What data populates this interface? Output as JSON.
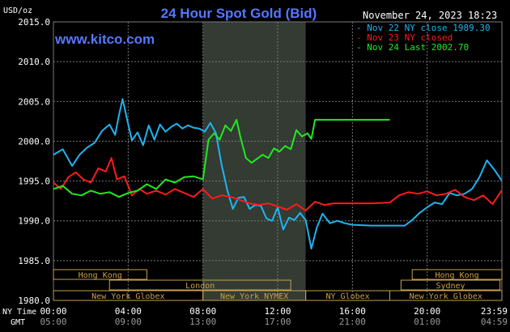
{
  "header": {
    "title": "24 Hour Spot Gold (Bid)",
    "unit": "USD/oz",
    "date": "November 24, 2023 18:23",
    "watermark": "www.kitco.com"
  },
  "legend": [
    {
      "label": "Nov 22 NY close 1989.30",
      "color": "#1eb4f0"
    },
    {
      "label": "Nov 23 NY closed",
      "color": "#ff1a1a"
    },
    {
      "label": "Nov 24 Last 2002.70",
      "color": "#22e822"
    }
  ],
  "footer": {
    "ny_time_label": "NY Time",
    "gmt_label": "GMT"
  },
  "markets": {
    "row1": [
      "Hong Kong",
      "Hong Kong"
    ],
    "row2": [
      "London",
      "Sydney"
    ],
    "row3": [
      "New York Globex",
      "New York NYMEX",
      "NY Globex",
      "New York Globex"
    ]
  },
  "colors": {
    "background": "#000000",
    "grid": "#7a7a7a",
    "shaded_session": "#333b33",
    "market_box": "#c9a14a",
    "axis_text": "#ffffff",
    "title": "#5577ff",
    "watermark": "#5577ff"
  },
  "chart_data": {
    "type": "line",
    "ylim": [
      1980,
      2015
    ],
    "yticks": [
      "1980.0",
      "1985.0",
      "1990.0",
      "1995.0",
      "2000.0",
      "2005.0",
      "2010.0",
      "2015.0"
    ],
    "xlim": [
      0,
      24
    ],
    "xticks_ny": [
      "00:00",
      "04:00",
      "08:00",
      "12:00",
      "16:00",
      "20:00",
      "23:59"
    ],
    "xticks_gmt": [
      "05:00",
      "09:00",
      "13:00",
      "17:00",
      "21:00",
      "01:00",
      "04:59"
    ],
    "series": [
      {
        "name": "Nov 22 NY close 1989.30",
        "color": "#1eb4f0",
        "x": [
          0,
          0.5,
          1,
          1.4,
          1.8,
          2.2,
          2.6,
          3,
          3.3,
          3.5,
          3.7,
          3.9,
          4.2,
          4.5,
          4.8,
          5.1,
          5.4,
          5.7,
          6,
          6.3,
          6.6,
          6.9,
          7.2,
          7.5,
          7.8,
          8.1,
          8.4,
          8.7,
          9.0,
          9.3,
          9.6,
          9.9,
          10.2,
          10.5,
          10.8,
          11.1,
          11.4,
          11.7,
          12.0,
          12.3,
          12.6,
          12.9,
          13.2,
          13.5,
          13.8,
          14.1,
          14.4,
          14.8,
          15.2,
          15.6,
          16,
          17,
          18,
          18.8,
          19.2,
          19.6,
          20,
          20.4,
          20.8,
          21.2,
          21.6,
          22,
          22.4,
          22.8,
          23.2,
          23.6,
          23.98
        ],
        "values": [
          1998.3,
          1999.0,
          1996.9,
          1998.3,
          1999.2,
          1999.8,
          2001.3,
          2002.1,
          2000.8,
          2003.2,
          2005.3,
          2003.2,
          2000.1,
          2001.1,
          1999.5,
          2002.0,
          2000.2,
          2002.1,
          2001.2,
          2001.8,
          2002.2,
          2001.6,
          2002.0,
          2001.7,
          2001.6,
          2001.2,
          2002.3,
          2001.0,
          1997.0,
          1993.9,
          1991.5,
          1992.9,
          1993.0,
          1991.5,
          1992.0,
          1991.9,
          1990.3,
          1990.0,
          1991.7,
          1988.9,
          1990.4,
          1990.1,
          1991.0,
          1990.1,
          1986.5,
          1989.2,
          1990.9,
          1989.7,
          1990.0,
          1989.7,
          1989.5,
          1989.4,
          1989.4,
          1989.4,
          1990.1,
          1991.0,
          1991.7,
          1992.3,
          1992.1,
          1993.5,
          1993.2,
          1993.4,
          1994.0,
          1995.5,
          1997.6,
          1996.4,
          1995.1
        ]
      },
      {
        "name": "Nov 23 NY closed",
        "color": "#ff1a1a",
        "x": [
          0,
          0.4,
          0.8,
          1.2,
          1.6,
          2.0,
          2.4,
          2.8,
          3.1,
          3.4,
          3.8,
          4.2,
          4.6,
          5.0,
          5.5,
          6.0,
          6.5,
          7.0,
          7.5,
          8.0,
          8.5,
          9.0,
          9.5,
          10.0,
          10.5,
          11.0,
          11.5,
          12.0,
          12.5,
          13.0,
          13.5,
          14.0,
          14.5,
          15,
          16,
          17,
          18,
          18.5,
          19,
          19.5,
          20,
          20.5,
          21,
          21.5,
          22,
          22.5,
          23,
          23.5,
          23.98
        ],
        "values": [
          1994.8,
          1994.0,
          1995.5,
          1996.1,
          1995.2,
          1994.8,
          1996.6,
          1996.2,
          1997.9,
          1995.2,
          1995.6,
          1993.2,
          1994.0,
          1993.4,
          1993.8,
          1993.3,
          1994.0,
          1993.5,
          1993.0,
          1994.0,
          1992.8,
          1993.2,
          1993.0,
          1992.6,
          1992.2,
          1992.0,
          1992.2,
          1991.8,
          1991.4,
          1992.1,
          1991.3,
          1992.4,
          1992.0,
          1992.2,
          1992.2,
          1992.2,
          1992.3,
          1993.2,
          1993.6,
          1993.4,
          1993.7,
          1993.2,
          1993.4,
          1993.9,
          1993.0,
          1992.6,
          1993.2,
          1992.1,
          1993.8
        ]
      },
      {
        "name": "Nov 24 Last 2002.70",
        "color": "#22e822",
        "x": [
          0,
          0.5,
          1.0,
          1.5,
          2.0,
          2.5,
          3.0,
          3.5,
          4.0,
          4.5,
          5.0,
          5.5,
          6.0,
          6.5,
          7.0,
          7.5,
          8.0,
          8.3,
          8.6,
          8.9,
          9.2,
          9.5,
          9.8,
          10.0,
          10.3,
          10.6,
          10.9,
          11.2,
          11.5,
          11.8,
          12.1,
          12.4,
          12.7,
          13.0,
          13.3,
          13.6,
          13.8,
          14.0,
          14.5,
          15,
          16,
          17,
          18
        ],
        "values": [
          1994.0,
          1994.4,
          1993.4,
          1993.2,
          1993.8,
          1993.4,
          1993.6,
          1993.0,
          1993.5,
          1993.8,
          1994.6,
          1994.0,
          1995.2,
          1994.8,
          1995.5,
          1995.6,
          1995.2,
          2000.2,
          2001.0,
          2000.2,
          2002.0,
          2001.3,
          2002.7,
          2000.6,
          1997.9,
          1997.3,
          1997.8,
          1998.3,
          1997.9,
          1999.1,
          1998.7,
          1999.4,
          1999.0,
          2001.4,
          2000.6,
          2001.0,
          2000.3,
          2002.7,
          2002.7,
          2002.7,
          2002.7,
          2002.7,
          2002.7
        ]
      }
    ]
  }
}
